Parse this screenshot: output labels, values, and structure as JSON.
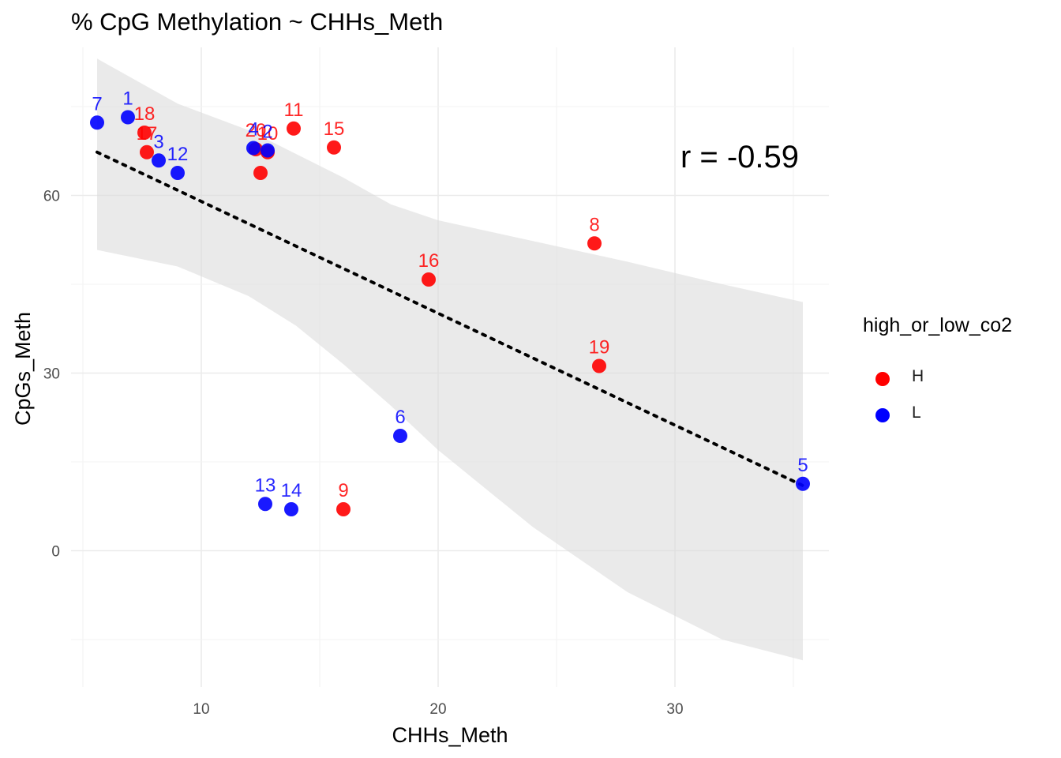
{
  "chart_data": {
    "type": "scatter",
    "title": "% CpG Methylation ~ CHHs_Meth",
    "xlabel": "CHHs_Meth",
    "ylabel": "CpGs_Meth",
    "xlim": [
      4.5,
      36.5
    ],
    "ylim": [
      -23,
      85
    ],
    "x_ticks": [
      10,
      20,
      30
    ],
    "y_ticks": [
      0,
      30,
      60
    ],
    "grid": true,
    "annotation": "r = -0.59",
    "legend": {
      "title": "high_or_low_co2",
      "position": "right",
      "entries": [
        {
          "label": "H",
          "color": "#ff0000"
        },
        {
          "label": "L",
          "color": "#0000ff"
        }
      ]
    },
    "series": [
      {
        "name": "H",
        "color": "#ff0000",
        "points": [
          {
            "x": 7.6,
            "y": 70.6,
            "label": "18"
          },
          {
            "x": 7.7,
            "y": 67.3,
            "label": "17"
          },
          {
            "x": 12.3,
            "y": 67.8,
            "label": "20"
          },
          {
            "x": 12.8,
            "y": 67.3,
            "label": "10"
          },
          {
            "x": 12.5,
            "y": 63.8,
            "label": ""
          },
          {
            "x": 13.9,
            "y": 71.3,
            "label": "11"
          },
          {
            "x": 15.6,
            "y": 68.1,
            "label": "15"
          },
          {
            "x": 26.6,
            "y": 51.9,
            "label": "8"
          },
          {
            "x": 19.6,
            "y": 45.8,
            "label": "16"
          },
          {
            "x": 26.8,
            "y": 31.2,
            "label": "19"
          },
          {
            "x": 16.0,
            "y": 7.0,
            "label": "9"
          }
        ]
      },
      {
        "name": "L",
        "color": "#0000ff",
        "points": [
          {
            "x": 5.6,
            "y": 72.3,
            "label": "7"
          },
          {
            "x": 6.9,
            "y": 73.2,
            "label": "1"
          },
          {
            "x": 8.2,
            "y": 65.9,
            "label": "3"
          },
          {
            "x": 9.0,
            "y": 63.8,
            "label": "12"
          },
          {
            "x": 12.2,
            "y": 68.0,
            "label": "4"
          },
          {
            "x": 12.8,
            "y": 67.6,
            "label": "2"
          },
          {
            "x": 18.4,
            "y": 19.4,
            "label": "6"
          },
          {
            "x": 12.7,
            "y": 7.9,
            "label": "13"
          },
          {
            "x": 13.8,
            "y": 7.0,
            "label": "14"
          },
          {
            "x": 35.4,
            "y": 11.3,
            "label": "5"
          }
        ]
      }
    ],
    "trend_line": {
      "style": "dotted",
      "color": "#000000",
      "x": [
        5.6,
        35.4
      ],
      "y": [
        67.3,
        11.0
      ]
    },
    "confidence_band": {
      "color": "#d9d9d9",
      "upper": [
        [
          5.6,
          83.1
        ],
        [
          9.0,
          75.5
        ],
        [
          12.0,
          71.0
        ],
        [
          14.0,
          67.0
        ],
        [
          16.0,
          63.0
        ],
        [
          18.0,
          58.5
        ],
        [
          20.0,
          55.8
        ],
        [
          24.0,
          52.3
        ],
        [
          28.0,
          48.8
        ],
        [
          32.0,
          45.0
        ],
        [
          35.4,
          42.0
        ]
      ],
      "lower": [
        [
          5.6,
          50.8
        ],
        [
          9.0,
          48.0
        ],
        [
          12.0,
          43.0
        ],
        [
          14.0,
          38.0
        ],
        [
          16.0,
          31.5
        ],
        [
          18.0,
          24.5
        ],
        [
          20.0,
          17.0
        ],
        [
          24.0,
          4.0
        ],
        [
          28.0,
          -7.0
        ],
        [
          32.0,
          -15.0
        ],
        [
          35.4,
          -18.5
        ]
      ]
    }
  }
}
